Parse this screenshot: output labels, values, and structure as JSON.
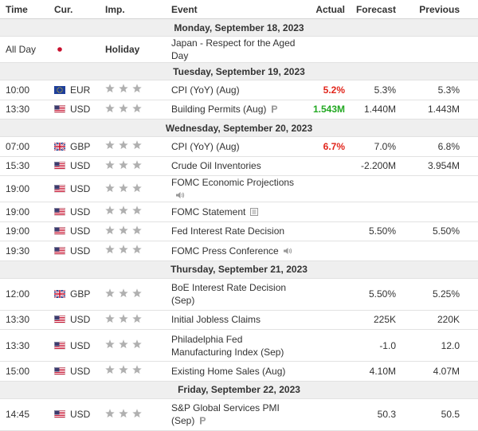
{
  "columns": [
    "Time",
    "Cur.",
    "Imp.",
    "Event",
    "Actual",
    "Forecast",
    "Previous"
  ],
  "days": [
    {
      "date": "Monday, September 18, 2023",
      "events": [
        {
          "time": "All Day",
          "importance": "Holiday",
          "event": "Japan - Respect for the Aged Day"
        }
      ]
    },
    {
      "date": "Tuesday, September 19, 2023",
      "events": [
        {
          "time": "10:00",
          "currency": "EUR",
          "event": "CPI (YoY) (Aug)",
          "actual": "5.2%",
          "actual_color": "#e1251b",
          "forecast": "5.3%",
          "previous": "5.3%"
        },
        {
          "time": "13:30",
          "currency": "USD",
          "event": "Building Permits (Aug)",
          "actual": "1.543M",
          "actual_color": "#22a822",
          "forecast": "1.440M",
          "previous": "1.443M"
        }
      ]
    },
    {
      "date": "Wednesday, September 20, 2023",
      "events": [
        {
          "time": "07:00",
          "currency": "GBP",
          "event": "CPI (YoY) (Aug)",
          "actual": "6.7%",
          "actual_color": "#e1251b",
          "forecast": "7.0%",
          "previous": "6.8%"
        },
        {
          "time": "15:30",
          "currency": "USD",
          "event": "Crude Oil Inventories",
          "forecast": "-2.200M",
          "previous": "3.954M"
        },
        {
          "time": "19:00",
          "currency": "USD",
          "event": "FOMC Economic Projections"
        },
        {
          "time": "19:00",
          "currency": "USD",
          "event": "FOMC Statement"
        },
        {
          "time": "19:00",
          "currency": "USD",
          "event": "Fed Interest Rate Decision",
          "forecast": "5.50%",
          "previous": "5.50%"
        },
        {
          "time": "19:30",
          "currency": "USD",
          "event": "FOMC Press Conference"
        }
      ]
    },
    {
      "date": "Thursday, September 21, 2023",
      "events": [
        {
          "time": "12:00",
          "currency": "GBP",
          "event": "BoE Interest Rate Decision (Sep)",
          "forecast": "5.50%",
          "previous": "5.25%"
        },
        {
          "time": "13:30",
          "currency": "USD",
          "event": "Initial Jobless Claims",
          "forecast": "225K",
          "previous": "220K"
        },
        {
          "time": "13:30",
          "currency": "USD",
          "event": "Philadelphia Fed Manufacturing Index (Sep)",
          "forecast": "-1.0",
          "previous": "12.0"
        },
        {
          "time": "15:00",
          "currency": "USD",
          "event": "Existing Home Sales (Aug)",
          "forecast": "4.10M",
          "previous": "4.07M"
        }
      ]
    },
    {
      "date": "Friday, September 22, 2023",
      "events": [
        {
          "time": "14:45",
          "currency": "USD",
          "event": "S&P Global Services PMI (Sep)",
          "forecast": "50.3",
          "previous": "50.5"
        }
      ]
    }
  ]
}
